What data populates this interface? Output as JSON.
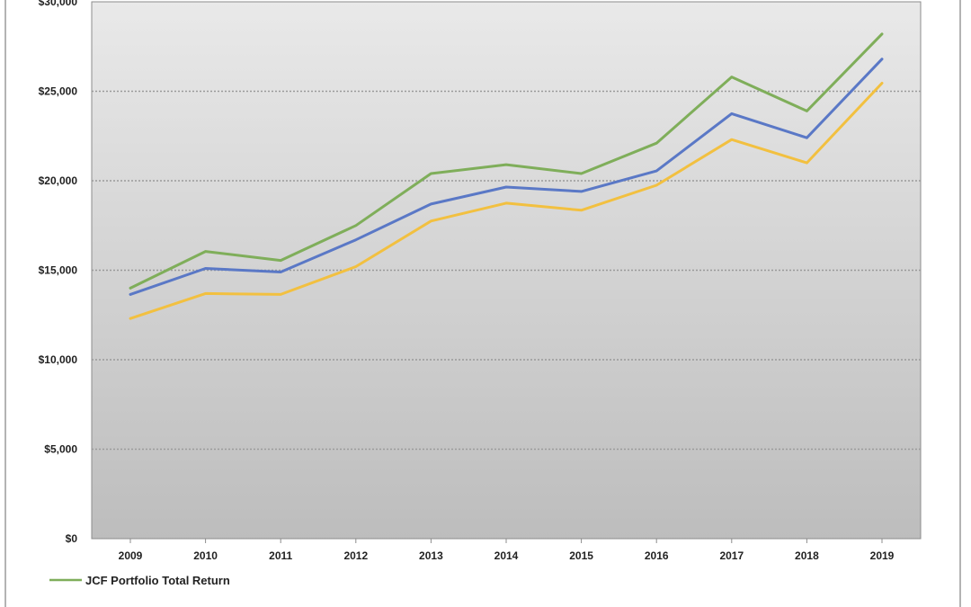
{
  "chart_data": {
    "type": "line",
    "title": "",
    "xlabel": "",
    "ylabel": "",
    "categories": [
      "2009",
      "2010",
      "2011",
      "2012",
      "2013",
      "2014",
      "2015",
      "2016",
      "2017",
      "2018",
      "2019"
    ],
    "ylim": [
      0,
      30000
    ],
    "y_ticks": [
      0,
      5000,
      10000,
      15000,
      20000,
      25000,
      30000
    ],
    "y_tick_labels": [
      "$0",
      "$5,000",
      "$10,000",
      "$15,000",
      "$20,000",
      "$25,000",
      "$30,000"
    ],
    "grid": true,
    "legend_placement": "bottom-left",
    "series": [
      {
        "name": "JCF Portfolio Total Return",
        "color": "#7fae5a",
        "values": [
          14000,
          16050,
          15550,
          17500,
          20400,
          20900,
          20400,
          22100,
          25800,
          23900,
          28200
        ]
      },
      {
        "color": "#5a78c6",
        "values": [
          13650,
          15100,
          14900,
          16700,
          18700,
          19650,
          19400,
          20550,
          23750,
          22400,
          26800
        ]
      },
      {
        "color": "#f2c040",
        "values": [
          12300,
          13700,
          13650,
          15200,
          17750,
          18750,
          18350,
          19750,
          22300,
          21000,
          25450
        ]
      }
    ],
    "plot_background": [
      "#e9e9e9",
      "#bdbdbd"
    ],
    "grid_color": "#9a9a9a",
    "frame_color": "#9a9a9a"
  }
}
